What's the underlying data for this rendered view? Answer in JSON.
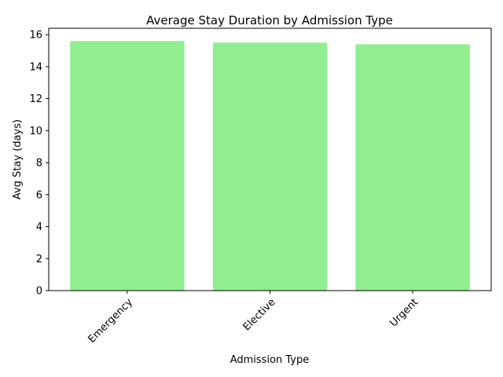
{
  "chart_data": {
    "type": "bar",
    "title": "Average Stay Duration by Admission Type",
    "xlabel": "Admission Type",
    "ylabel": "Avg Stay (days)",
    "categories": [
      "Emergency",
      "Elective",
      "Urgent"
    ],
    "values": [
      15.6,
      15.5,
      15.4
    ],
    "ylim": [
      0,
      16.4
    ],
    "yticks": [
      0,
      2,
      4,
      6,
      8,
      10,
      12,
      14,
      16
    ],
    "bar_color": "#90ee90",
    "grid": false,
    "legend": "none"
  }
}
